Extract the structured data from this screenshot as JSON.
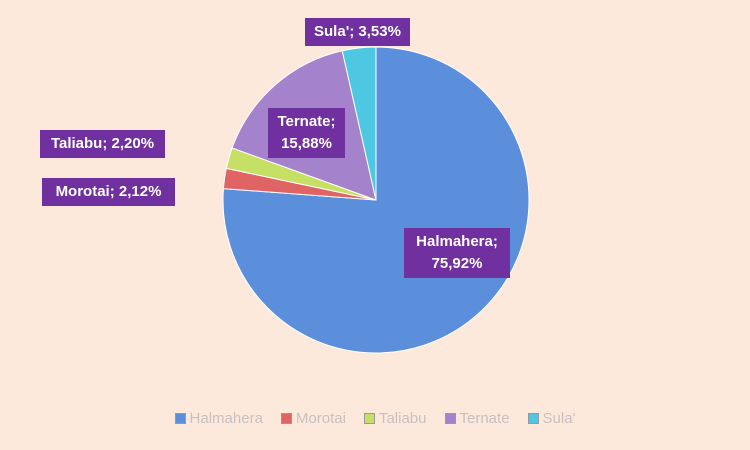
{
  "chart_data": {
    "type": "pie",
    "categories": [
      "Halmahera",
      "Morotai",
      "Taliabu",
      "Ternate",
      "Sula'"
    ],
    "values": [
      75.92,
      2.12,
      2.2,
      15.88,
      3.53
    ],
    "value_labels": [
      "Halmahera; 75,92%",
      "Morotai; 2,12%",
      "Taliabu; 2,20%",
      "Ternate; 15,88%",
      "Sula'; 3,53%"
    ],
    "colors": [
      "#5b8fdc",
      "#e06464",
      "#c6e066",
      "#a482cc",
      "#4ec8e2"
    ],
    "legend": "bottom"
  }
}
